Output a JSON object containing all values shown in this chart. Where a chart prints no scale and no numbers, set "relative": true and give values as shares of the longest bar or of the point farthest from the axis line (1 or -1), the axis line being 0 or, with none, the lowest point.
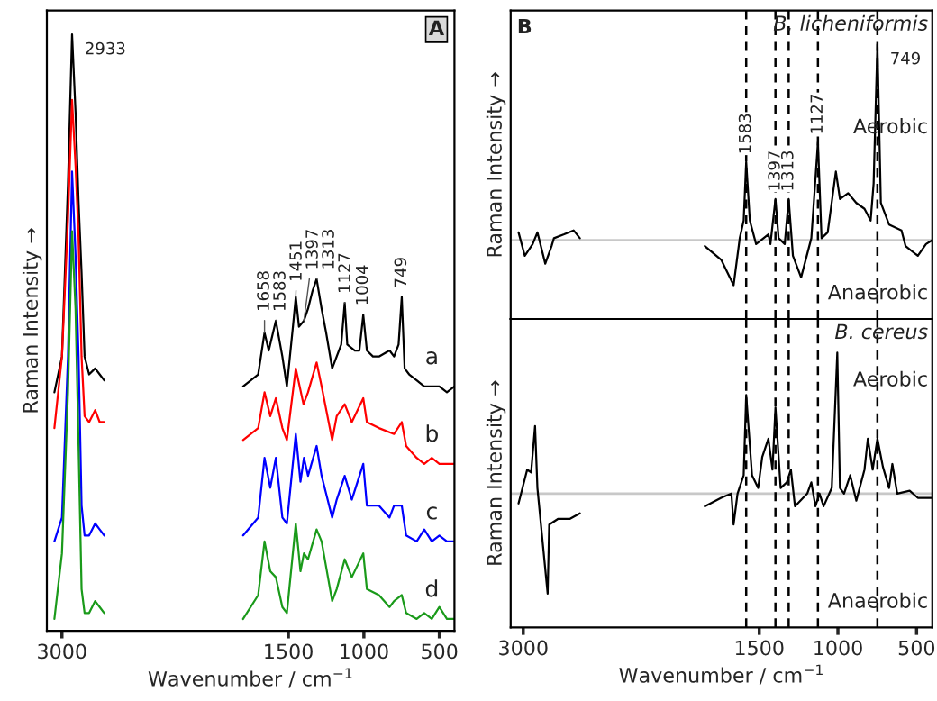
{
  "chart_data": [
    {
      "type": "line",
      "relative": true,
      "xlabel": "Wavenumber / cm$^{−1}$",
      "ylabel": "Raman Intensity →",
      "xlim": [
        3100,
        400
      ],
      "xticks": [
        3000,
        1500,
        1000,
        500
      ],
      "tick_labels": "x",
      "annotations": [
        "A",
        {
          "text": "2933",
          "x": 2933,
          "y": 1.0
        },
        {
          "text": "1658",
          "x": 1658,
          "y": 0.5
        },
        {
          "text": "1583",
          "x": 1583,
          "y": 0.52
        },
        {
          "text": "1451",
          "x": 1451,
          "y": 0.56
        },
        {
          "text": "1397",
          "x": 1397,
          "y": 0.52
        },
        {
          "text": "1313",
          "x": 1313,
          "y": 0.59
        },
        {
          "text": "1127",
          "x": 1127,
          "y": 0.55
        },
        {
          "text": "1004",
          "x": 1004,
          "y": 0.53
        },
        {
          "text": "749",
          "x": 749,
          "y": 0.56
        }
      ],
      "series": [
        {
          "name": "a",
          "color": "#000000",
          "x": [
            3050,
            3000,
            2960,
            2933,
            2910,
            2890,
            2870,
            2850,
            2820,
            2780,
            2750,
            2720,
            1800,
            1700,
            1658,
            1630,
            1583,
            1540,
            1510,
            1470,
            1451,
            1430,
            1397,
            1370,
            1340,
            1313,
            1280,
            1250,
            1210,
            1180,
            1150,
            1127,
            1110,
            1060,
            1030,
            1004,
            980,
            940,
            900,
            830,
            800,
            770,
            749,
            730,
            700,
            650,
            600,
            550,
            500,
            450,
            400
          ],
          "values": [
            0.4,
            0.46,
            0.75,
            1.0,
            0.87,
            0.72,
            0.6,
            0.46,
            0.43,
            0.44,
            0.43,
            0.42,
            0.41,
            0.43,
            0.5,
            0.47,
            0.52,
            0.46,
            0.41,
            0.51,
            0.56,
            0.51,
            0.52,
            0.54,
            0.57,
            0.59,
            0.54,
            0.5,
            0.44,
            0.46,
            0.48,
            0.55,
            0.48,
            0.47,
            0.47,
            0.53,
            0.47,
            0.46,
            0.46,
            0.47,
            0.46,
            0.48,
            0.56,
            0.44,
            0.43,
            0.42,
            0.41,
            0.41,
            0.41,
            0.4,
            0.41
          ]
        },
        {
          "name": "b",
          "color": "#ff0000",
          "x": [
            3050,
            3000,
            2960,
            2933,
            2910,
            2890,
            2870,
            2850,
            2820,
            2780,
            2750,
            2720,
            1800,
            1700,
            1658,
            1620,
            1583,
            1540,
            1510,
            1451,
            1400,
            1370,
            1313,
            1280,
            1210,
            1180,
            1127,
            1080,
            1004,
            980,
            900,
            800,
            749,
            720,
            650,
            600,
            550,
            500,
            450,
            400
          ],
          "values": [
            0.34,
            0.46,
            0.69,
            0.89,
            0.78,
            0.66,
            0.46,
            0.36,
            0.35,
            0.37,
            0.35,
            0.35,
            0.32,
            0.34,
            0.4,
            0.36,
            0.39,
            0.34,
            0.32,
            0.44,
            0.38,
            0.4,
            0.45,
            0.41,
            0.32,
            0.36,
            0.38,
            0.35,
            0.39,
            0.35,
            0.34,
            0.33,
            0.35,
            0.31,
            0.29,
            0.28,
            0.29,
            0.28,
            0.28,
            0.28
          ]
        },
        {
          "name": "c",
          "color": "#0000ff",
          "x": [
            3050,
            3000,
            2960,
            2933,
            2910,
            2890,
            2870,
            2850,
            2820,
            2780,
            2750,
            2720,
            1800,
            1700,
            1658,
            1620,
            1583,
            1540,
            1510,
            1451,
            1420,
            1397,
            1370,
            1313,
            1280,
            1210,
            1180,
            1127,
            1080,
            1004,
            980,
            900,
            830,
            800,
            749,
            720,
            650,
            600,
            550,
            500,
            450,
            400
          ],
          "values": [
            0.15,
            0.19,
            0.46,
            0.77,
            0.63,
            0.46,
            0.21,
            0.16,
            0.16,
            0.18,
            0.17,
            0.16,
            0.16,
            0.19,
            0.29,
            0.24,
            0.29,
            0.19,
            0.18,
            0.33,
            0.25,
            0.29,
            0.26,
            0.31,
            0.26,
            0.19,
            0.22,
            0.26,
            0.22,
            0.28,
            0.21,
            0.21,
            0.19,
            0.21,
            0.21,
            0.16,
            0.15,
            0.17,
            0.15,
            0.16,
            0.15,
            0.15
          ]
        },
        {
          "name": "d",
          "color": "#1a9a1a",
          "x": [
            3050,
            3000,
            2960,
            2933,
            2910,
            2890,
            2870,
            2850,
            2820,
            2780,
            2750,
            2720,
            1800,
            1700,
            1658,
            1620,
            1583,
            1540,
            1510,
            1451,
            1420,
            1397,
            1370,
            1313,
            1280,
            1210,
            1180,
            1127,
            1080,
            1004,
            980,
            900,
            830,
            800,
            749,
            720,
            650,
            600,
            550,
            500,
            450,
            400
          ],
          "values": [
            0.02,
            0.13,
            0.4,
            0.67,
            0.54,
            0.31,
            0.07,
            0.03,
            0.03,
            0.05,
            0.04,
            0.03,
            0.02,
            0.06,
            0.15,
            0.1,
            0.09,
            0.04,
            0.03,
            0.18,
            0.1,
            0.13,
            0.12,
            0.17,
            0.15,
            0.05,
            0.07,
            0.12,
            0.09,
            0.13,
            0.07,
            0.06,
            0.04,
            0.05,
            0.06,
            0.03,
            0.02,
            0.03,
            0.02,
            0.04,
            0.02,
            0.02
          ]
        }
      ]
    },
    {
      "type": "line",
      "relative": true,
      "title": "B. licheniformis",
      "ylabel": "Raman Intensity →",
      "xlim": [
        3080,
        400
      ],
      "xticks": [
        3000,
        1500,
        1000,
        500
      ],
      "tick_labels": false,
      "annotations": [
        "B",
        "Aerobic",
        "Anaerobic",
        {
          "text": "749",
          "x": 749,
          "y": 1.0
        }
      ],
      "ref_lines": [
        {
          "axis": "y",
          "value": 0,
          "color": "#c8c8c8",
          "line_style": "solid"
        },
        {
          "axis": "x",
          "value": 1583,
          "label": "1583",
          "color": "#000000",
          "line_style": "dashed"
        },
        {
          "axis": "x",
          "value": 1397,
          "label": "1397",
          "color": "#000000",
          "line_style": "dashed"
        },
        {
          "axis": "x",
          "value": 1313,
          "label": "1313",
          "color": "#000000",
          "line_style": "dashed"
        },
        {
          "axis": "x",
          "value": 1127,
          "label": "1127",
          "color": "#000000",
          "line_style": "dashed"
        },
        {
          "axis": "x",
          "value": 749,
          "color": "#000000",
          "line_style": "dashed"
        }
      ],
      "series": [
        {
          "color": "#000000",
          "x": [
            3030,
            2990,
            2940,
            2910,
            2860,
            2820,
            2805,
            2740,
            2680,
            2640,
            1846,
            1742,
            1663,
            1624,
            1599,
            1583,
            1560,
            1520,
            1442,
            1429,
            1397,
            1377,
            1338,
            1313,
            1286,
            1234,
            1169,
            1156,
            1127,
            1104,
            1065,
            1013,
            987,
            935,
            883,
            831,
            792,
            773,
            749,
            727,
            675,
            596,
            570,
            492,
            440,
            400
          ],
          "values": [
            0.04,
            -0.08,
            -0.02,
            0.04,
            -0.12,
            -0.03,
            0.01,
            0.03,
            0.05,
            0.01,
            -0.03,
            -0.1,
            -0.23,
            0.01,
            0.1,
            0.4,
            0.1,
            -0.02,
            0.03,
            -0.02,
            0.21,
            0.01,
            -0.02,
            0.21,
            -0.08,
            -0.19,
            0.01,
            0.16,
            0.5,
            0.01,
            0.04,
            0.35,
            0.21,
            0.24,
            0.19,
            0.16,
            0.1,
            0.29,
            1.0,
            0.19,
            0.08,
            0.05,
            -0.03,
            -0.08,
            -0.02,
            0.0
          ]
        }
      ]
    },
    {
      "type": "line",
      "relative": true,
      "title": "B. cereus",
      "xlabel": "Wavenumber / cm$^{−1}$",
      "ylabel": "Raman Intensity →",
      "xlim": [
        3080,
        400
      ],
      "xticks": [
        3000,
        1500,
        1000,
        500
      ],
      "tick_labels": "x",
      "annotations": [
        "Aerobic",
        "Anaerobic"
      ],
      "ref_lines": [
        {
          "axis": "y",
          "value": 0,
          "color": "#c8c8c8",
          "line_style": "solid"
        },
        {
          "axis": "x",
          "value": 1583,
          "color": "#000000",
          "line_style": "dashed"
        },
        {
          "axis": "x",
          "value": 1397,
          "color": "#000000",
          "line_style": "dashed"
        },
        {
          "axis": "x",
          "value": 1313,
          "color": "#000000",
          "line_style": "dashed"
        },
        {
          "axis": "x",
          "value": 1127,
          "color": "#000000",
          "line_style": "dashed"
        },
        {
          "axis": "x",
          "value": 749,
          "color": "#000000",
          "line_style": "dashed"
        }
      ],
      "series": [
        {
          "color": "#000000",
          "x": [
            3030,
            2975,
            2950,
            2925,
            2910,
            2845,
            2835,
            2780,
            2705,
            2640,
            1846,
            1742,
            1677,
            1663,
            1638,
            1599,
            1583,
            1546,
            1507,
            1481,
            1442,
            1416,
            1397,
            1364,
            1325,
            1299,
            1273,
            1195,
            1169,
            1143,
            1117,
            1091,
            1039,
            1004,
            987,
            961,
            922,
            883,
            831,
            810,
            779,
            749,
            714,
            675,
            654,
            623,
            544,
            492,
            400
          ],
          "values": [
            -0.07,
            0.17,
            0.15,
            0.48,
            0.04,
            -0.71,
            -0.22,
            -0.18,
            -0.18,
            -0.14,
            -0.09,
            -0.03,
            0.0,
            -0.22,
            0.0,
            0.13,
            0.7,
            0.13,
            0.04,
            0.26,
            0.39,
            0.17,
            0.61,
            0.04,
            0.08,
            0.17,
            -0.09,
            0.0,
            0.08,
            -0.09,
            0.0,
            -0.09,
            0.04,
            1.0,
            0.04,
            0.0,
            0.13,
            -0.05,
            0.17,
            0.39,
            0.17,
            0.39,
            0.19,
            0.04,
            0.21,
            0.0,
            0.02,
            -0.03,
            -0.03
          ]
        }
      ]
    }
  ]
}
